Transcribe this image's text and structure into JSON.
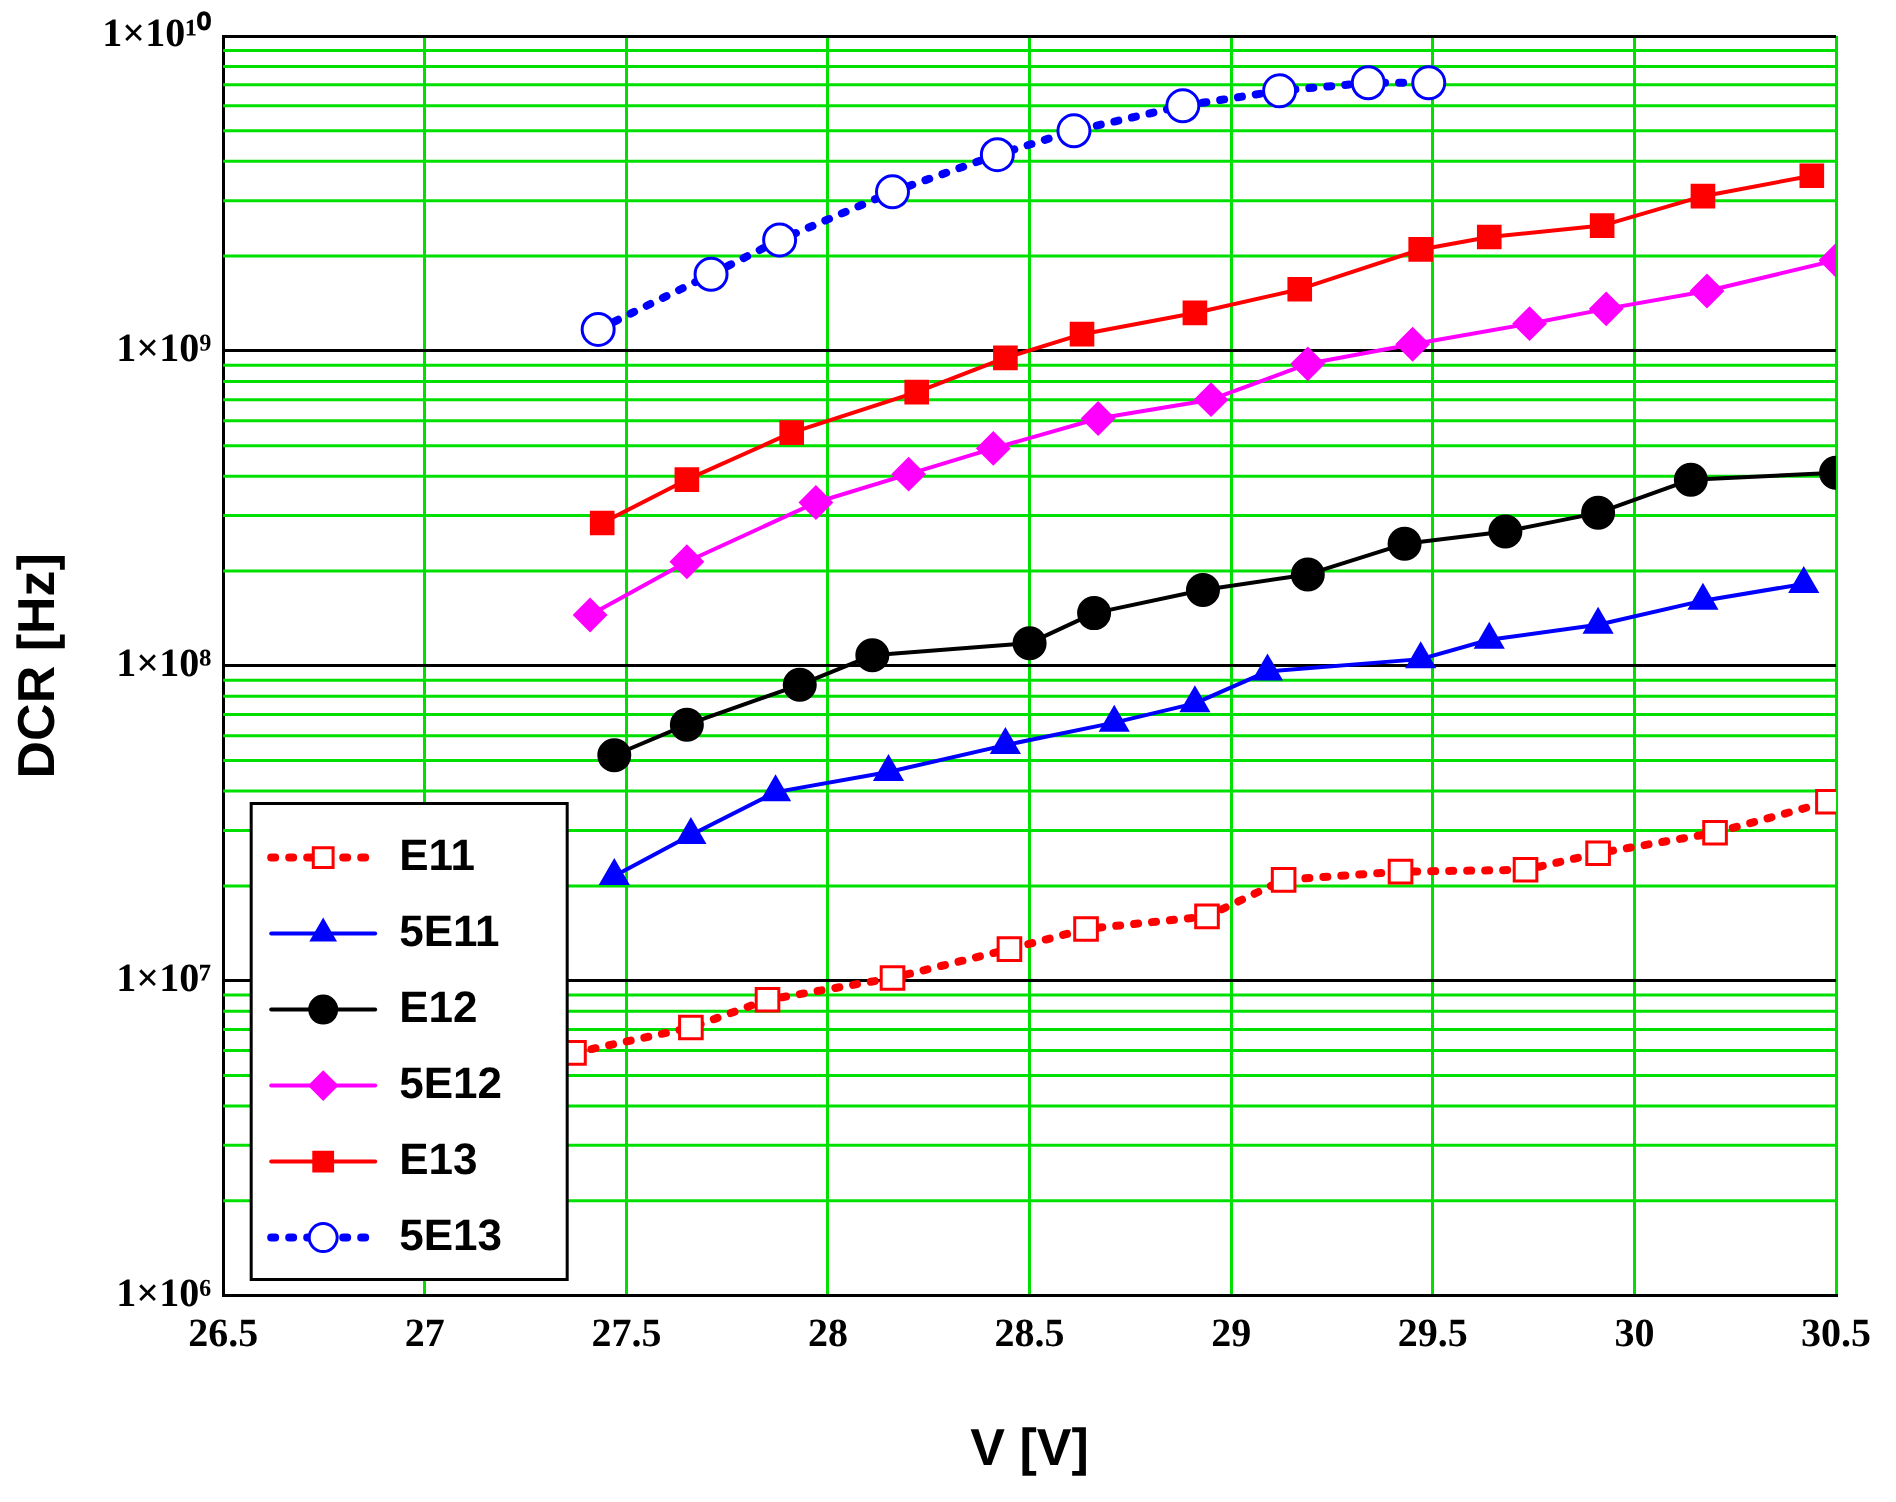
{
  "chart_data": {
    "type": "line",
    "xlabel": "V [V]",
    "ylabel": "DCR [Hz]",
    "log": "y",
    "grid": true,
    "legend": "bottom left",
    "xlim": [
      26.5,
      30.5
    ],
    "xticks": [
      26.5,
      27,
      27.5,
      28,
      28.5,
      29,
      29.5,
      30,
      30.5
    ],
    "ylim": [
      1000000,
      10000000000
    ],
    "yticks": [
      {
        "value": 1000000,
        "label": "1×10⁶"
      },
      {
        "value": 10000000,
        "label": "1×10⁷"
      },
      {
        "value": 100000000,
        "label": "1×10⁸"
      },
      {
        "value": 1000000000,
        "label": "1×10⁹"
      },
      {
        "value": 10000000000,
        "label": "1×10¹⁰"
      }
    ],
    "series": [
      {
        "name": "E11",
        "color": "#ff0000",
        "marker": "square",
        "line_style": "dotted",
        "x": [
          27.37,
          27.66,
          27.85,
          28.16,
          28.45,
          28.64,
          28.94,
          29.13,
          29.42,
          29.73,
          29.91,
          30.2,
          30.48
        ],
        "values": [
          5900000,
          7100000,
          8700000,
          10200000,
          12600000,
          14600000,
          16000000,
          20900000,
          22200000,
          22500000,
          25400000,
          29500000,
          37000000
        ]
      },
      {
        "name": "5E11",
        "color": "#0000ff",
        "marker": "triangle",
        "line_style": "solid",
        "x": [
          27.47,
          27.66,
          27.87,
          28.15,
          28.44,
          28.71,
          28.91,
          29.09,
          29.47,
          29.64,
          29.91,
          30.17,
          30.42
        ],
        "values": [
          21500000,
          29000000,
          39700000,
          46000000,
          56000000,
          66000000,
          76000000,
          96000000,
          105000000,
          121000000,
          135000000,
          161000000,
          182000000
        ]
      },
      {
        "name": "E12",
        "color": "#000000",
        "marker": "circle",
        "line_style": "solid",
        "x": [
          27.47,
          27.65,
          27.93,
          28.11,
          28.5,
          28.66,
          28.93,
          29.19,
          29.43,
          29.68,
          29.91,
          30.14,
          30.5
        ],
        "values": [
          52000000,
          65000000,
          87000000,
          108000000,
          118000000,
          147000000,
          174000000,
          195000000,
          244000000,
          267000000,
          306000000,
          390000000,
          410000000
        ]
      },
      {
        "name": "5E12",
        "color": "#ff00ff",
        "marker": "diamond",
        "line_style": "solid",
        "x": [
          27.41,
          27.65,
          27.97,
          28.2,
          28.41,
          28.67,
          28.95,
          29.19,
          29.45,
          29.74,
          29.93,
          30.18,
          30.5
        ],
        "values": [
          145000000,
          214000000,
          330000000,
          406000000,
          490000000,
          610000000,
          700000000,
          910000000,
          1050000000,
          1220000000,
          1360000000,
          1550000000,
          1940000000
        ]
      },
      {
        "name": "E13",
        "color": "#ff0000",
        "marker": "square",
        "line_style": "solid",
        "x": [
          27.44,
          27.65,
          27.91,
          28.22,
          28.44,
          28.63,
          28.91,
          29.17,
          29.47,
          29.64,
          29.92,
          30.17,
          30.44
        ],
        "values": [
          284000000,
          390000000,
          550000000,
          740000000,
          950000000,
          1130000000,
          1320000000,
          1570000000,
          2100000000,
          2300000000,
          2500000000,
          3100000000,
          3600000000
        ]
      },
      {
        "name": "5E13",
        "color": "#0000ff",
        "marker": "circle",
        "line_style": "dotted",
        "x": [
          27.43,
          27.71,
          27.88,
          28.16,
          28.42,
          28.61,
          28.88,
          29.12,
          29.34,
          29.49
        ],
        "values": [
          1170000000,
          1750000000,
          2250000000,
          3200000000,
          4200000000,
          5000000000,
          6000000000,
          6700000000,
          7100000000,
          7100000000
        ]
      }
    ]
  }
}
